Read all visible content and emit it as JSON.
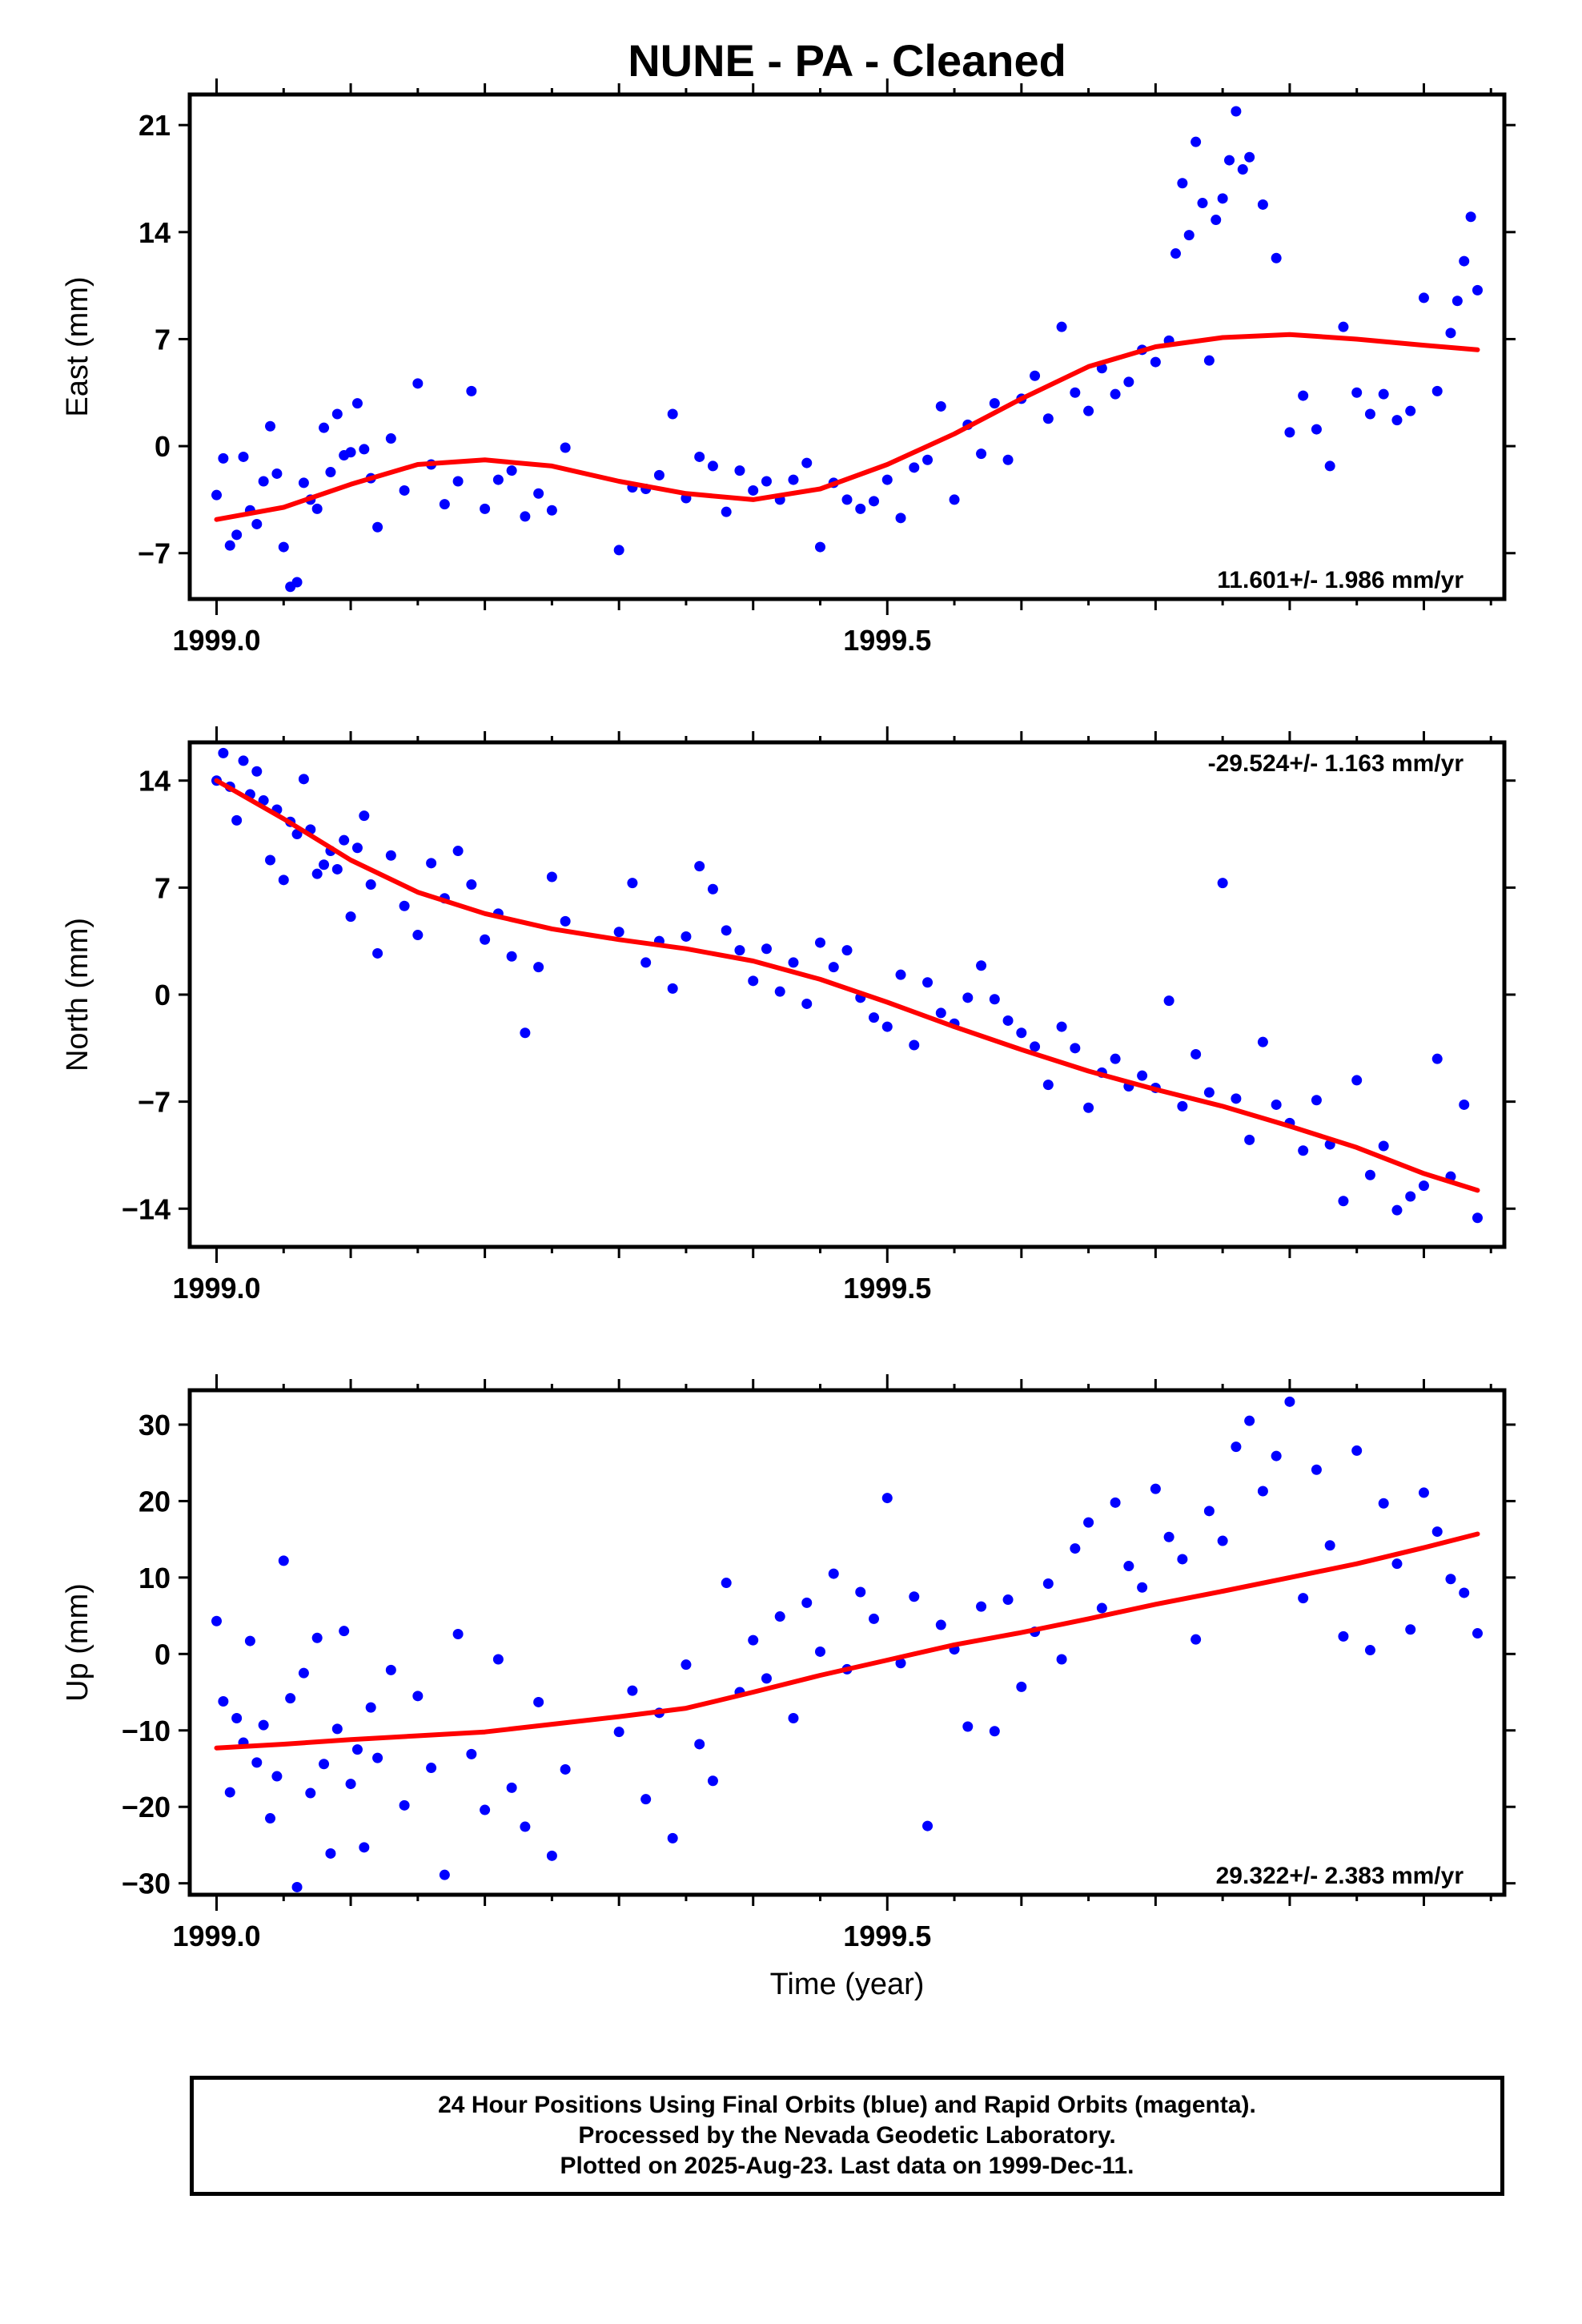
{
  "title": "NUNE  - PA - Cleaned",
  "colors": {
    "final_orbits": "#0000ff",
    "model_fit": "#ff0000"
  },
  "chart_data": [
    {
      "type": "scatter",
      "panel": "east",
      "ylabel": "East (mm)",
      "ylim": [
        -10,
        23
      ],
      "yticks": [
        -7,
        0,
        7,
        14,
        21
      ],
      "xlim": [
        1998.98,
        1999.96
      ],
      "xticks": [
        "1999.0",
        "1999.5"
      ],
      "rate_label": "11.601+/- 1.986 mm/yr",
      "rate_position": "bottom-right",
      "series": [
        {
          "role": "data",
          "x": [
            1999.0,
            1999.005,
            1999.01,
            1999.015,
            1999.02,
            1999.025,
            1999.03,
            1999.035,
            1999.04,
            1999.045,
            1999.05,
            1999.055,
            1999.06,
            1999.065,
            1999.07,
            1999.075,
            1999.08,
            1999.085,
            1999.09,
            1999.095,
            1999.1,
            1999.105,
            1999.11,
            1999.115,
            1999.12,
            1999.13,
            1999.14,
            1999.15,
            1999.16,
            1999.17,
            1999.18,
            1999.19,
            1999.2,
            1999.21,
            1999.22,
            1999.23,
            1999.24,
            1999.25,
            1999.26,
            1999.3,
            1999.31,
            1999.32,
            1999.33,
            1999.34,
            1999.35,
            1999.36,
            1999.37,
            1999.38,
            1999.39,
            1999.4,
            1999.41,
            1999.42,
            1999.43,
            1999.44,
            1999.45,
            1999.46,
            1999.47,
            1999.48,
            1999.49,
            1999.5,
            1999.51,
            1999.52,
            1999.53,
            1999.54,
            1999.55,
            1999.56,
            1999.57,
            1999.58,
            1999.59,
            1999.6,
            1999.61,
            1999.62,
            1999.63,
            1999.64,
            1999.65,
            1999.66,
            1999.67,
            1999.68,
            1999.69,
            1999.7,
            1999.71,
            1999.715,
            1999.72,
            1999.725,
            1999.73,
            1999.735,
            1999.74,
            1999.745,
            1999.75,
            1999.755,
            1999.76,
            1999.765,
            1999.77,
            1999.78,
            1999.79,
            1999.8,
            1999.81,
            1999.82,
            1999.83,
            1999.84,
            1999.85,
            1999.86,
            1999.87,
            1999.88,
            1999.89,
            1999.9,
            1999.91,
            1999.92,
            1999.925,
            1999.93,
            1999.935,
            1999.94
          ],
          "y": [
            -3.2,
            -0.8,
            -6.5,
            -5.8,
            -0.7,
            -4.2,
            -5.1,
            -2.3,
            1.3,
            -1.8,
            -6.6,
            -9.2,
            -8.9,
            -2.4,
            -3.5,
            -4.1,
            1.2,
            -1.7,
            2.1,
            -0.6,
            -0.4,
            2.8,
            -0.2,
            -2.1,
            -5.3,
            0.5,
            -2.9,
            4.1,
            -1.2,
            -3.8,
            -2.3,
            3.6,
            -4.1,
            -2.2,
            -1.6,
            -4.6,
            -3.1,
            -4.2,
            -0.1,
            -6.8,
            -2.7,
            -2.8,
            -1.9,
            2.1,
            -3.4,
            -0.7,
            -1.3,
            -4.3,
            -1.6,
            -2.9,
            -2.3,
            -3.5,
            -2.2,
            -1.1,
            -6.6,
            -2.4,
            -3.5,
            -4.1,
            -3.6,
            -2.2,
            -4.7,
            -1.4,
            -0.9,
            2.6,
            -3.5,
            1.4,
            -0.5,
            2.8,
            -0.9,
            3.1,
            4.6,
            1.8,
            7.8,
            3.5,
            2.3,
            5.1,
            3.4,
            4.2,
            6.3,
            5.5,
            6.9,
            12.6,
            17.2,
            13.8,
            19.9,
            15.9,
            5.6,
            14.8,
            16.2,
            18.7,
            21.9,
            18.1,
            18.9,
            15.8,
            12.3,
            0.9,
            3.3,
            1.1,
            -1.3,
            7.8,
            3.5,
            2.1,
            3.4,
            1.7,
            2.3,
            9.7,
            3.6,
            7.4,
            9.5,
            12.1,
            15.0,
            10.2
          ],
          "color": "#0000ff"
        },
        {
          "role": "fit",
          "x": [
            1999.0,
            1999.05,
            1999.1,
            1999.15,
            1999.2,
            1999.25,
            1999.3,
            1999.35,
            1999.4,
            1999.45,
            1999.5,
            1999.55,
            1999.6,
            1999.65,
            1999.7,
            1999.75,
            1999.8,
            1999.85,
            1999.9,
            1999.94
          ],
          "y": [
            -4.8,
            -4.0,
            -2.5,
            -1.2,
            -0.9,
            -1.3,
            -2.3,
            -3.1,
            -3.5,
            -2.8,
            -1.2,
            0.8,
            3.1,
            5.2,
            6.5,
            7.1,
            7.3,
            7.0,
            6.6,
            6.3
          ],
          "color": "#ff0000"
        }
      ]
    },
    {
      "type": "scatter",
      "panel": "north",
      "ylabel": "North (mm)",
      "ylim": [
        -16.5,
        16.5
      ],
      "yticks": [
        -14,
        -7,
        0,
        7,
        14
      ],
      "xlim": [
        1998.98,
        1999.96
      ],
      "xticks": [
        "1999.0",
        "1999.5"
      ],
      "rate_label": "-29.524+/- 1.163 mm/yr",
      "rate_position": "top-right",
      "series": [
        {
          "role": "data",
          "x": [
            1999.0,
            1999.005,
            1999.01,
            1999.015,
            1999.02,
            1999.025,
            1999.03,
            1999.035,
            1999.04,
            1999.045,
            1999.05,
            1999.055,
            1999.06,
            1999.065,
            1999.07,
            1999.075,
            1999.08,
            1999.085,
            1999.09,
            1999.095,
            1999.1,
            1999.105,
            1999.11,
            1999.115,
            1999.12,
            1999.13,
            1999.14,
            1999.15,
            1999.16,
            1999.17,
            1999.18,
            1999.19,
            1999.2,
            1999.21,
            1999.22,
            1999.23,
            1999.24,
            1999.25,
            1999.26,
            1999.3,
            1999.31,
            1999.32,
            1999.33,
            1999.34,
            1999.35,
            1999.36,
            1999.37,
            1999.38,
            1999.39,
            1999.4,
            1999.41,
            1999.42,
            1999.43,
            1999.44,
            1999.45,
            1999.46,
            1999.47,
            1999.48,
            1999.49,
            1999.5,
            1999.51,
            1999.52,
            1999.53,
            1999.54,
            1999.55,
            1999.56,
            1999.57,
            1999.58,
            1999.59,
            1999.6,
            1999.61,
            1999.62,
            1999.63,
            1999.64,
            1999.65,
            1999.66,
            1999.67,
            1999.68,
            1999.69,
            1999.7,
            1999.71,
            1999.72,
            1999.73,
            1999.74,
            1999.75,
            1999.76,
            1999.77,
            1999.78,
            1999.79,
            1999.8,
            1999.81,
            1999.82,
            1999.83,
            1999.84,
            1999.85,
            1999.86,
            1999.87,
            1999.88,
            1999.89,
            1999.9,
            1999.91,
            1999.92,
            1999.93,
            1999.94
          ],
          "y": [
            14.0,
            15.8,
            13.6,
            11.4,
            15.3,
            13.1,
            14.6,
            12.7,
            8.8,
            12.1,
            7.5,
            11.3,
            10.5,
            14.1,
            10.8,
            7.9,
            8.5,
            9.4,
            8.2,
            10.1,
            5.1,
            9.6,
            11.7,
            7.2,
            2.7,
            9.1,
            5.8,
            3.9,
            8.6,
            6.3,
            9.4,
            7.2,
            3.6,
            5.3,
            2.5,
            -2.5,
            1.8,
            7.7,
            4.8,
            4.1,
            7.3,
            2.1,
            3.5,
            0.4,
            3.8,
            8.4,
            6.9,
            4.2,
            2.9,
            0.9,
            3.0,
            0.2,
            2.1,
            -0.6,
            3.4,
            1.8,
            2.9,
            -0.2,
            -1.5,
            -2.1,
            1.3,
            -3.3,
            0.8,
            -1.2,
            -1.9,
            -0.2,
            1.9,
            -0.3,
            -1.7,
            -2.5,
            -3.4,
            -5.9,
            -2.1,
            -3.5,
            -7.4,
            -5.1,
            -4.2,
            -6.0,
            -5.3,
            -6.1,
            -0.4,
            -7.3,
            -3.9,
            -6.4,
            7.3,
            -6.8,
            -9.5,
            -3.1,
            -7.2,
            -8.4,
            -10.2,
            -6.9,
            -9.8,
            -13.5,
            -5.6,
            -11.8,
            -9.9,
            -14.1,
            -13.2,
            -12.5,
            -4.2,
            -11.9,
            -7.2,
            -14.6
          ],
          "color": "#0000ff"
        },
        {
          "role": "fit",
          "x": [
            1999.0,
            1999.05,
            1999.1,
            1999.15,
            1999.2,
            1999.25,
            1999.3,
            1999.35,
            1999.4,
            1999.45,
            1999.5,
            1999.55,
            1999.6,
            1999.65,
            1999.7,
            1999.75,
            1999.8,
            1999.85,
            1999.9,
            1999.94
          ],
          "y": [
            14.0,
            11.5,
            8.8,
            6.7,
            5.3,
            4.3,
            3.6,
            3.0,
            2.2,
            1.0,
            -0.5,
            -2.1,
            -3.6,
            -5.0,
            -6.2,
            -7.3,
            -8.6,
            -10.0,
            -11.7,
            -12.8
          ],
          "color": "#ff0000"
        }
      ]
    },
    {
      "type": "scatter",
      "panel": "up",
      "ylabel": "Up (mm)",
      "ylim": [
        -31.5,
        34.5
      ],
      "yticks": [
        -30,
        -20,
        -10,
        0,
        10,
        20,
        30
      ],
      "xlim": [
        1998.98,
        1999.96
      ],
      "xticks": [
        "1999.0",
        "1999.5"
      ],
      "xlabel": "Time (year)",
      "rate_label": "29.322+/- 2.383 mm/yr",
      "rate_position": "bottom-right",
      "series": [
        {
          "role": "data",
          "x": [
            1999.0,
            1999.005,
            1999.01,
            1999.015,
            1999.02,
            1999.025,
            1999.03,
            1999.035,
            1999.04,
            1999.045,
            1999.05,
            1999.055,
            1999.06,
            1999.065,
            1999.07,
            1999.075,
            1999.08,
            1999.085,
            1999.09,
            1999.095,
            1999.1,
            1999.105,
            1999.11,
            1999.115,
            1999.12,
            1999.13,
            1999.14,
            1999.15,
            1999.16,
            1999.17,
            1999.18,
            1999.19,
            1999.2,
            1999.21,
            1999.22,
            1999.23,
            1999.24,
            1999.25,
            1999.26,
            1999.3,
            1999.31,
            1999.32,
            1999.33,
            1999.34,
            1999.35,
            1999.36,
            1999.37,
            1999.38,
            1999.39,
            1999.4,
            1999.41,
            1999.42,
            1999.43,
            1999.44,
            1999.45,
            1999.46,
            1999.47,
            1999.48,
            1999.49,
            1999.5,
            1999.51,
            1999.52,
            1999.53,
            1999.54,
            1999.55,
            1999.56,
            1999.57,
            1999.58,
            1999.59,
            1999.6,
            1999.61,
            1999.62,
            1999.63,
            1999.64,
            1999.65,
            1999.66,
            1999.67,
            1999.68,
            1999.69,
            1999.7,
            1999.71,
            1999.72,
            1999.73,
            1999.74,
            1999.75,
            1999.76,
            1999.77,
            1999.78,
            1999.79,
            1999.8,
            1999.81,
            1999.82,
            1999.83,
            1999.84,
            1999.85,
            1999.86,
            1999.87,
            1999.88,
            1999.89,
            1999.9,
            1999.91,
            1999.92,
            1999.93,
            1999.94
          ],
          "y": [
            4.3,
            -6.2,
            -18.1,
            -8.4,
            -11.6,
            1.7,
            -14.2,
            -9.3,
            -21.5,
            -16.0,
            12.2,
            -5.8,
            -30.5,
            -2.5,
            -18.2,
            2.1,
            -14.4,
            -26.1,
            -9.8,
            3.0,
            -17.0,
            -12.5,
            -25.3,
            -7.0,
            -13.6,
            -2.1,
            -19.8,
            -5.5,
            -14.9,
            -28.9,
            2.6,
            -13.1,
            -20.4,
            -0.7,
            -17.5,
            -22.6,
            -6.3,
            -26.4,
            -15.1,
            -10.2,
            -4.8,
            -19.0,
            -7.7,
            -24.1,
            -1.4,
            -11.8,
            -16.6,
            9.3,
            -5.0,
            1.8,
            -3.2,
            4.9,
            -8.4,
            6.7,
            0.3,
            10.5,
            -2.0,
            8.1,
            4.6,
            20.4,
            -1.2,
            7.5,
            -22.5,
            3.8,
            0.6,
            -9.5,
            6.2,
            -10.1,
            7.1,
            -4.3,
            2.9,
            9.2,
            -0.7,
            13.8,
            17.2,
            6.0,
            19.8,
            11.5,
            8.7,
            21.6,
            15.3,
            12.4,
            1.9,
            18.7,
            14.8,
            27.1,
            30.5,
            21.3,
            25.9,
            33.0,
            7.3,
            24.1,
            14.2,
            2.3,
            26.6,
            0.5,
            19.7,
            11.8,
            3.2,
            21.1,
            16.0,
            9.8,
            8.0,
            2.7
          ],
          "color": "#0000ff"
        },
        {
          "role": "fit",
          "x": [
            1999.0,
            1999.05,
            1999.1,
            1999.15,
            1999.2,
            1999.25,
            1999.3,
            1999.35,
            1999.4,
            1999.45,
            1999.5,
            1999.55,
            1999.6,
            1999.65,
            1999.7,
            1999.75,
            1999.8,
            1999.85,
            1999.9,
            1999.94
          ],
          "y": [
            -12.3,
            -11.8,
            -11.2,
            -10.7,
            -10.2,
            -9.2,
            -8.2,
            -7.1,
            -5.0,
            -2.8,
            -0.8,
            1.2,
            2.8,
            4.6,
            6.5,
            8.2,
            10.0,
            11.8,
            13.9,
            15.7
          ],
          "color": "#ff0000"
        }
      ]
    }
  ],
  "caption": {
    "line1": "24 Hour Positions Using Final Orbits (blue) and Rapid Orbits (magenta).",
    "line2": "Processed by the Nevada Geodetic Laboratory.",
    "line3": "Plotted on 2025-Aug-23. Last data on 1999-Dec-11."
  }
}
